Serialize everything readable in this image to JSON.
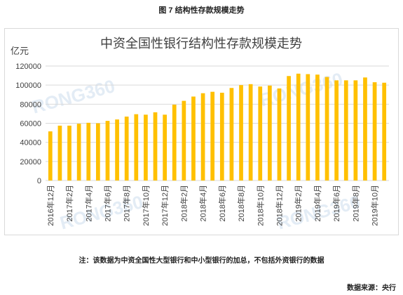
{
  "figure_title": "图 7 结构性存款规模走势",
  "note": "注：该数据为中资全国性大型银行和中小型银行的加总，不包括外资银行的数据",
  "source": "数据来源：央行",
  "watermark": "RONG360",
  "colors": {
    "bar": "#FFC000",
    "grid": "#d9d9d9",
    "axis_text": "#404040",
    "title_text": "#404040",
    "watermark": "#e3ecf5"
  },
  "chart_data": {
    "type": "bar",
    "title": "中资全国性银行结构性存款规模走势",
    "ylabel": "亿元",
    "xlabel": "",
    "ylim": [
      0,
      120000
    ],
    "yticks": [
      0,
      20000,
      40000,
      60000,
      80000,
      100000,
      120000
    ],
    "grid": true,
    "legend": "none",
    "categories": [
      "2016年12月",
      "2017年1月",
      "2017年2月",
      "2017年3月",
      "2017年4月",
      "2017年5月",
      "2017年6月",
      "2017年7月",
      "2017年8月",
      "2017年9月",
      "2017年10月",
      "2017年11月",
      "2017年12月",
      "2018年1月",
      "2018年2月",
      "2018年3月",
      "2018年4月",
      "2018年5月",
      "2018年6月",
      "2018年7月",
      "2018年8月",
      "2018年9月",
      "2018年10月",
      "2018年11月",
      "2018年12月",
      "2019年1月",
      "2019年2月",
      "2019年3月",
      "2019年4月",
      "2019年5月",
      "2019年6月",
      "2019年7月",
      "2019年8月",
      "2019年9月",
      "2019年10月",
      "2019年11月"
    ],
    "visible_tick_labels": [
      "2016年12月",
      "2017年2月",
      "2017年4月",
      "2017年6月",
      "2017年8月",
      "2017年10月",
      "2017年12月",
      "2018年2月",
      "2018年4月",
      "2018年6月",
      "2018年8月",
      "2018年10月",
      "2018年12月",
      "2019年2月",
      "2019年4月",
      "2019年6月",
      "2019年8月",
      "2019年10月"
    ],
    "values": [
      51500,
      57500,
      57500,
      59500,
      60500,
      60000,
      62500,
      64000,
      67000,
      69500,
      69000,
      71500,
      69000,
      79500,
      83500,
      88000,
      91500,
      93000,
      92000,
      97000,
      100000,
      101000,
      98500,
      99500,
      96500,
      109500,
      112000,
      111500,
      111000,
      108500,
      105000,
      105000,
      105000,
      108000,
      103000,
      102500
    ]
  }
}
